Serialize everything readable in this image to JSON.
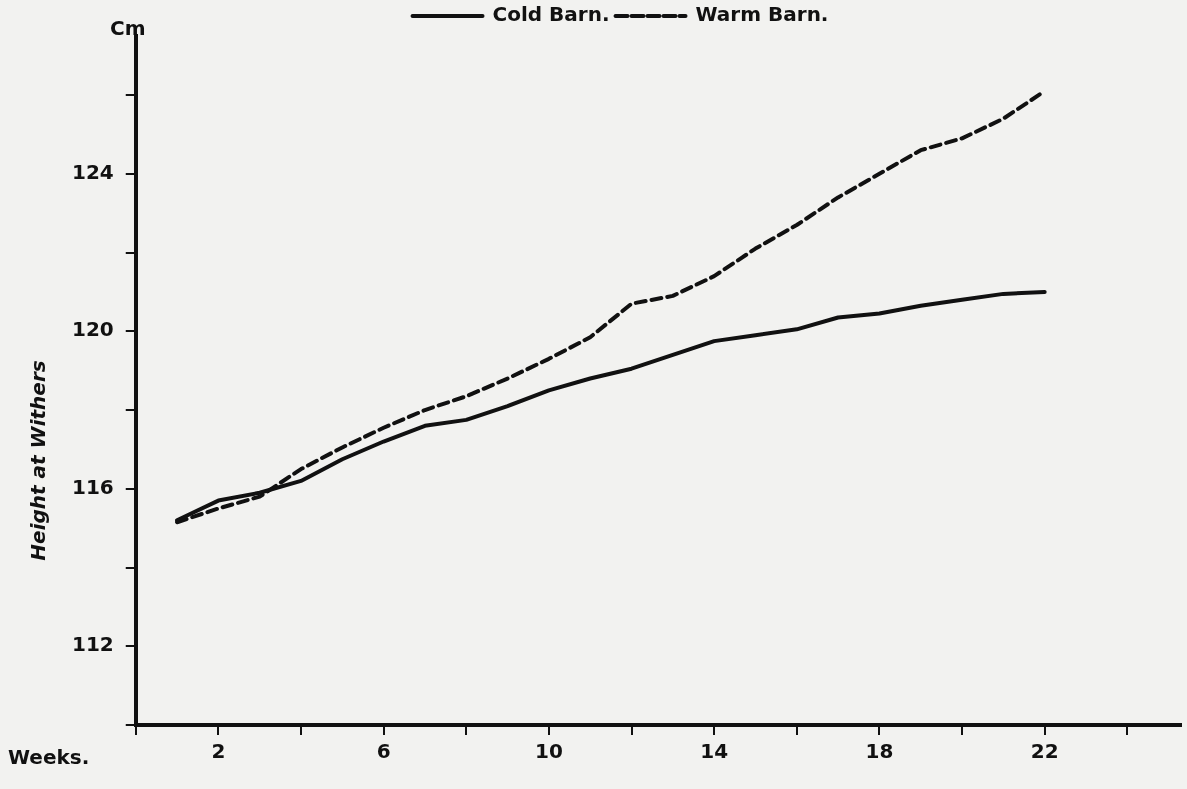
{
  "chart_data": {
    "type": "line",
    "xlabel": "Weeks.",
    "ylabel": "Height at Withers",
    "annotations": [
      "Cm"
    ],
    "x": [
      1,
      2,
      3,
      4,
      5,
      6,
      7,
      8,
      9,
      10,
      11,
      12,
      13,
      14,
      15,
      16,
      17,
      18,
      19,
      20,
      21,
      22
    ],
    "series": [
      {
        "name": "Cold Barn.",
        "color": "#111111",
        "line_style": "solid",
        "values": [
          115.2,
          115.7,
          115.9,
          116.2,
          116.75,
          117.2,
          117.6,
          117.75,
          118.1,
          118.5,
          118.8,
          119.05,
          119.4,
          119.75,
          119.9,
          120.05,
          120.35,
          120.45,
          120.65,
          120.8,
          120.95,
          121.0
        ]
      },
      {
        "name": "Warm Barn.",
        "color": "#111111",
        "line_style": "dashed",
        "values": [
          115.15,
          115.5,
          115.8,
          116.5,
          117.05,
          117.55,
          118.0,
          118.35,
          118.8,
          119.3,
          119.85,
          120.7,
          120.9,
          121.4,
          122.1,
          122.7,
          123.4,
          124.0,
          124.6,
          124.9,
          125.4,
          126.1
        ]
      }
    ],
    "xlim": [
      0,
      25.3
    ],
    "xticks": [
      {
        "value": 0,
        "label": null
      },
      2,
      {
        "value": 4,
        "label": null
      },
      6,
      {
        "value": 8,
        "label": null
      },
      10,
      {
        "value": 12,
        "label": null
      },
      14,
      {
        "value": 16,
        "label": null
      },
      18,
      {
        "value": 20,
        "label": null
      },
      22,
      {
        "value": 24,
        "label": null
      }
    ],
    "ylim": [
      110,
      127.5
    ],
    "yticks": [
      {
        "value": 110,
        "label": null
      },
      112,
      {
        "value": 114,
        "label": null
      },
      116,
      {
        "value": 118,
        "label": null
      },
      120,
      {
        "value": 122,
        "label": null
      },
      124,
      {
        "value": 126,
        "label": null
      }
    ],
    "grid": false,
    "legend": "top",
    "marker": "none"
  }
}
